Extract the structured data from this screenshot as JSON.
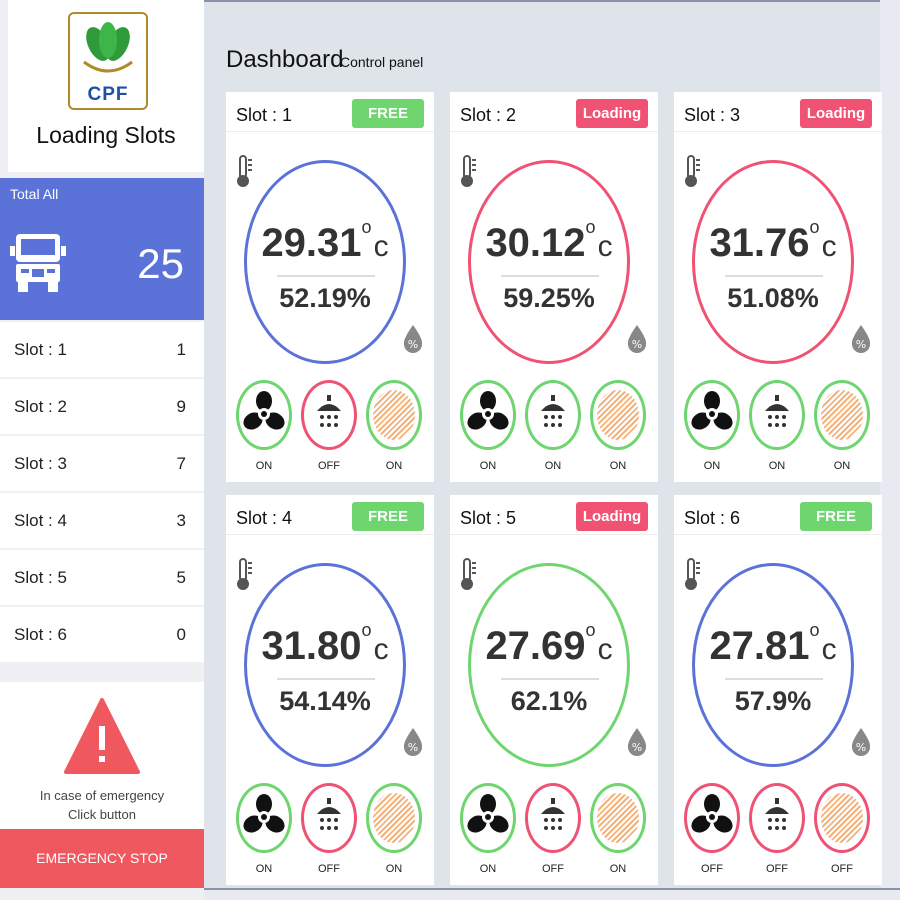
{
  "brand": {
    "logo_text": "CPF",
    "title": "Loading Slots"
  },
  "total": {
    "label": "Total All",
    "count": "25"
  },
  "slot_list": [
    {
      "label": "Slot : 1",
      "value": "1"
    },
    {
      "label": "Slot : 2",
      "value": "9"
    },
    {
      "label": "Slot : 3",
      "value": "7"
    },
    {
      "label": "Slot : 4",
      "value": "3"
    },
    {
      "label": "Slot : 5",
      "value": "5"
    },
    {
      "label": "Slot : 6",
      "value": "0"
    }
  ],
  "emergency": {
    "line1": "In case of emergency",
    "line2": "Click button",
    "button": "EMERGENCY STOP"
  },
  "header": {
    "title": "Dashboard",
    "subtitle": "Control panel"
  },
  "units": {
    "temp": "c",
    "degree": "o"
  },
  "colors": {
    "blue": "#5b72d8",
    "green": "#6fd56f",
    "red": "#f05274"
  },
  "cards": [
    {
      "title": "Slot : 1",
      "status": "FREE",
      "temp": "29.31",
      "humidity": "52.19%",
      "fan": "ON",
      "shower": "OFF",
      "heater": "ON"
    },
    {
      "title": "Slot : 2",
      "status": "Loading",
      "temp": "30.12",
      "humidity": "59.25%",
      "fan": "ON",
      "shower": "ON",
      "heater": "ON"
    },
    {
      "title": "Slot : 3",
      "status": "Loading",
      "temp": "31.76",
      "humidity": "51.08%",
      "fan": "ON",
      "shower": "ON",
      "heater": "ON"
    },
    {
      "title": "Slot : 4",
      "status": "FREE",
      "temp": "31.80",
      "humidity": "54.14%",
      "fan": "ON",
      "shower": "OFF",
      "heater": "ON"
    },
    {
      "title": "Slot : 5",
      "status": "Loading",
      "temp": "27.69",
      "humidity": "62.1%",
      "fan": "ON",
      "shower": "OFF",
      "heater": "ON"
    },
    {
      "title": "Slot : 6",
      "status": "FREE",
      "temp": "27.81",
      "humidity": "57.9%",
      "fan": "OFF",
      "shower": "OFF",
      "heater": "OFF"
    }
  ]
}
